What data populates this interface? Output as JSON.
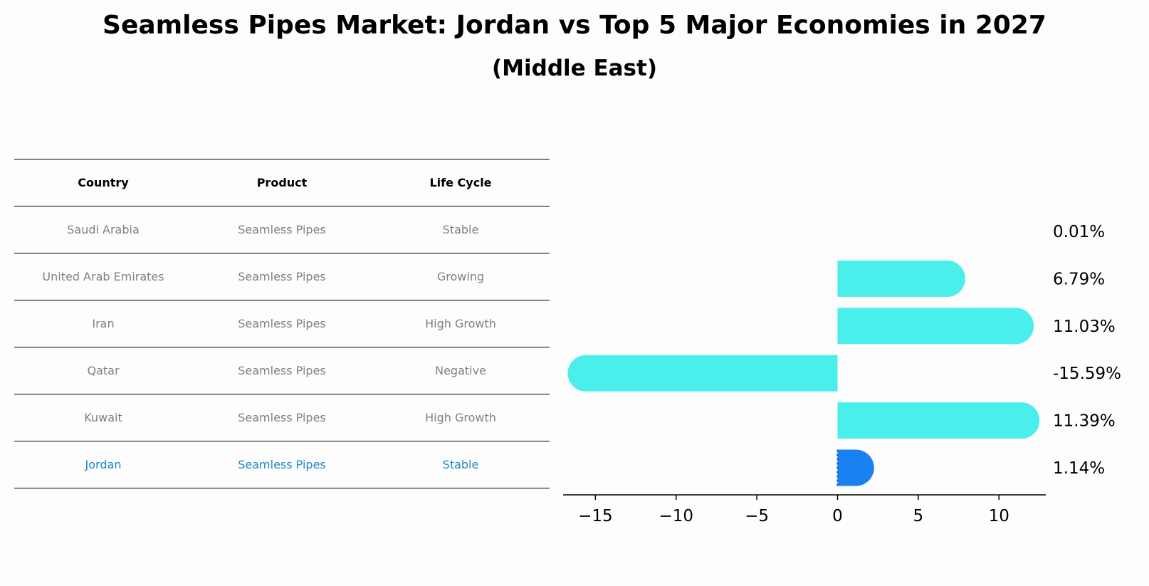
{
  "title": "Seamless Pipes Market: Jordan vs Top 5 Major Economies in 2027",
  "subtitle": "(Middle East)",
  "colors": {
    "bar": "#4aeeea",
    "highlight_bar": "#1a82f0",
    "table_text": "#808080",
    "highlight_text": "#1f86c8"
  },
  "table": {
    "headers": [
      "Country",
      "Product",
      "Life Cycle"
    ],
    "rows": [
      {
        "country": "Saudi Arabia",
        "product": "Seamless Pipes",
        "life_cycle": "Stable"
      },
      {
        "country": "United Arab Emirates",
        "product": "Seamless Pipes",
        "life_cycle": "Growing"
      },
      {
        "country": "Iran",
        "product": "Seamless Pipes",
        "life_cycle": "High Growth"
      },
      {
        "country": "Qatar",
        "product": "Seamless Pipes",
        "life_cycle": "Negative"
      },
      {
        "country": "Kuwait",
        "product": "Seamless Pipes",
        "life_cycle": "High Growth"
      },
      {
        "country": "Jordan",
        "product": "Seamless Pipes",
        "life_cycle": "Stable"
      }
    ]
  },
  "chart_data": {
    "type": "bar",
    "orientation": "horizontal",
    "categories": [
      "Saudi Arabia",
      "United Arab Emirates",
      "Iran",
      "Qatar",
      "Kuwait",
      "Jordan"
    ],
    "values": [
      0.01,
      6.79,
      11.03,
      -15.59,
      11.39,
      1.14
    ],
    "value_labels": [
      "0.01%",
      "6.79%",
      "11.03%",
      "-15.59%",
      "11.39%",
      "1.14%"
    ],
    "highlight": "Jordan",
    "xlim": [
      -17,
      12.9
    ],
    "xticks": [
      -15,
      -10,
      -5,
      0,
      5,
      10
    ],
    "xtick_labels": [
      "−15",
      "−10",
      "−5",
      "0",
      "5",
      "10"
    ],
    "xlabel": "",
    "ylabel": "",
    "grid": false
  }
}
